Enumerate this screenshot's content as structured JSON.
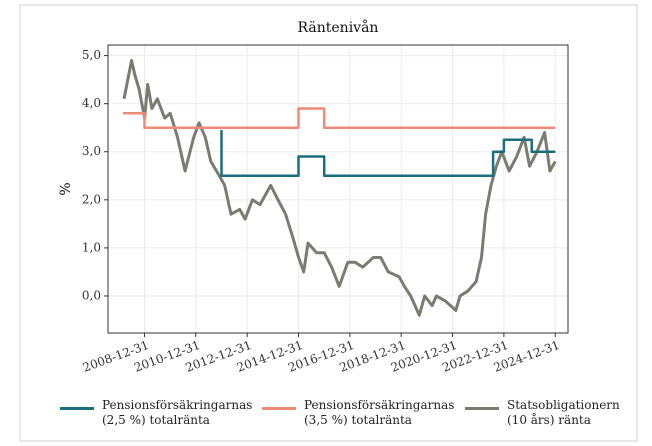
{
  "chart_data": {
    "type": "line",
    "title": "Räntenivån",
    "y_label": "%",
    "xlim": [
      "2007-07-31",
      "2025-06-30"
    ],
    "xticks": [
      "2008-12-31",
      "2010-12-31",
      "2012-12-31",
      "2014-12-31",
      "2016-12-31",
      "2018-12-31",
      "2020-12-31",
      "2022-12-31",
      "2024-12-31"
    ],
    "ylim": [
      -0.77,
      5.22
    ],
    "yticks": [
      {
        "value": 0,
        "label": "0,0"
      },
      {
        "value": 1,
        "label": "1,0"
      },
      {
        "value": 2,
        "label": "2,0"
      },
      {
        "value": 3,
        "label": "3,0"
      },
      {
        "value": 4,
        "label": "4,0"
      },
      {
        "value": 5,
        "label": "5,0"
      }
    ],
    "grid": true,
    "legend": "bottom",
    "series": [
      {
        "name": "Pensionsförsäkringarnas\n(2,5 %) totalränta",
        "color": "#1b6e7e",
        "step": true,
        "x": [
          "2011-12-31",
          "2012-01-01",
          "2014-12-31",
          "2015-12-31",
          "2022-07-31",
          "2022-12-31",
          "2024-01-31",
          "2024-12-31"
        ],
        "values": [
          3.45,
          2.5,
          2.9,
          2.5,
          3.0,
          3.25,
          3.0,
          3.0
        ]
      },
      {
        "name": "Pensionsförsäkringarnas\n(3,5 %) totalränta",
        "color": "#ef8a78",
        "step": true,
        "x": [
          "2008-03-01",
          "2008-12-31",
          "2014-12-31",
          "2015-12-31",
          "2024-12-31"
        ],
        "values": [
          3.8,
          3.5,
          3.9,
          3.5,
          3.5
        ]
      },
      {
        "name": "Statsobligationern\n(10 års) ränta",
        "color": "#7b7b72",
        "step": false,
        "x": [
          "2008-03-15",
          "2008-07-01",
          "2008-08-15",
          "2008-10-15",
          "2009-01-01",
          "2009-02-15",
          "2009-04-15",
          "2009-07-01",
          "2009-10-15",
          "2010-01-01",
          "2010-04-15",
          "2010-08-01",
          "2010-12-01",
          "2011-02-15",
          "2011-05-15",
          "2011-08-01",
          "2011-12-01",
          "2012-02-15",
          "2012-05-15",
          "2012-09-15",
          "2012-12-01",
          "2013-03-15",
          "2013-07-01",
          "2013-12-01",
          "2014-03-15",
          "2014-07-01",
          "2014-10-15",
          "2015-01-01",
          "2015-03-15",
          "2015-05-15",
          "2015-09-15",
          "2016-01-01",
          "2016-04-15",
          "2016-08-01",
          "2016-12-01",
          "2017-03-15",
          "2017-07-01",
          "2017-12-01",
          "2018-03-15",
          "2018-07-01",
          "2018-12-01",
          "2019-02-15",
          "2019-05-15",
          "2019-09-15",
          "2019-12-01",
          "2020-03-15",
          "2020-05-15",
          "2020-09-15",
          "2020-12-01",
          "2021-02-15",
          "2021-04-15",
          "2021-08-01",
          "2021-12-01",
          "2022-02-15",
          "2022-04-15",
          "2022-07-01",
          "2022-09-15",
          "2022-12-01",
          "2023-03-15",
          "2023-07-01",
          "2023-10-15",
          "2024-01-01",
          "2024-04-15",
          "2024-08-01",
          "2024-10-15",
          "2024-12-31"
        ],
        "values": [
          4.1,
          4.9,
          4.6,
          4.3,
          3.7,
          4.4,
          3.9,
          4.1,
          3.7,
          3.8,
          3.3,
          2.6,
          3.3,
          3.6,
          3.3,
          2.8,
          2.5,
          2.3,
          1.7,
          1.8,
          1.6,
          2.0,
          1.9,
          2.3,
          2.0,
          1.7,
          1.2,
          0.8,
          0.5,
          1.1,
          0.9,
          0.9,
          0.6,
          0.2,
          0.7,
          0.7,
          0.6,
          0.8,
          0.8,
          0.5,
          0.4,
          0.2,
          0.0,
          -0.4,
          0.0,
          -0.2,
          0.0,
          -0.1,
          -0.2,
          -0.3,
          0.0,
          0.1,
          0.3,
          0.8,
          1.7,
          2.3,
          2.7,
          3.0,
          2.6,
          2.9,
          3.3,
          2.7,
          3.0,
          3.4,
          2.6,
          2.8
        ]
      }
    ]
  }
}
